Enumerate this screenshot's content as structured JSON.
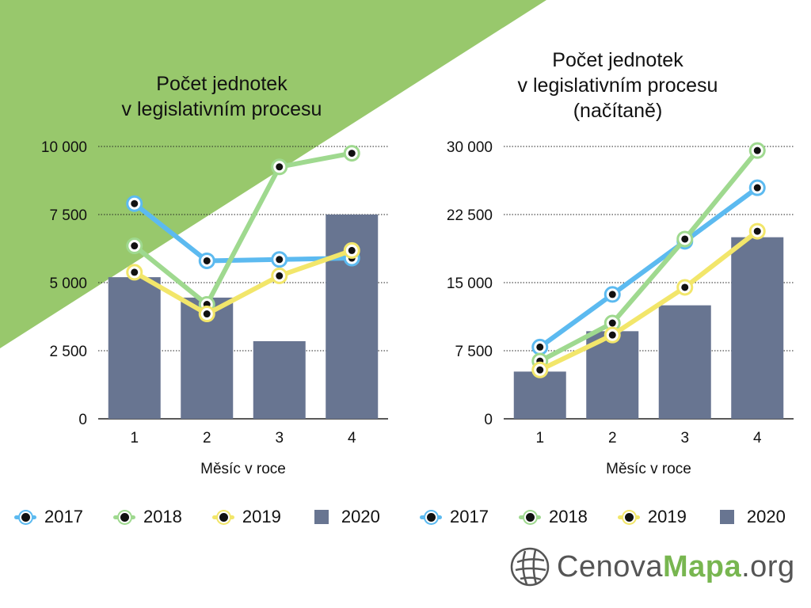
{
  "colors": {
    "background_accent": "#98c86c",
    "series_2017": "#5cbaf0",
    "series_2018": "#9fd98f",
    "series_2019": "#f2e66a",
    "series_2020": "#687591",
    "marker_fill": "#111111"
  },
  "legend": [
    {
      "label": "2017",
      "kind": "line",
      "color_key": "series_2017"
    },
    {
      "label": "2018",
      "kind": "line",
      "color_key": "series_2018"
    },
    {
      "label": "2019",
      "kind": "line",
      "color_key": "series_2019"
    },
    {
      "label": "2020",
      "kind": "bar",
      "color_key": "series_2020"
    }
  ],
  "logo": {
    "part1": "Cenova",
    "part2": "Mapa",
    "part3": ".org",
    "icon": "globe-grid-icon"
  },
  "chart_data": [
    {
      "type": "bar+line",
      "title_lines": [
        "Počet jednotek",
        "v legislativním procesu"
      ],
      "xlabel": "Měsíc v roce",
      "ylabel": "",
      "categories": [
        "1",
        "2",
        "3",
        "4"
      ],
      "ylim": [
        0,
        10000
      ],
      "yticks": [
        0,
        2500,
        5000,
        7500,
        10000
      ],
      "ytick_labels": [
        "0",
        "2 500",
        "5 000",
        "7 500",
        "10 000"
      ],
      "grid": true,
      "legend_position": "bottom",
      "bars": {
        "name": "2020",
        "values": [
          5200,
          4450,
          2850,
          7500
        ]
      },
      "series": [
        {
          "name": "2017",
          "values": [
            7900,
            5800,
            5850,
            5900
          ]
        },
        {
          "name": "2018",
          "values": [
            6350,
            4200,
            9250,
            9750
          ]
        },
        {
          "name": "2019",
          "values": [
            5380,
            3850,
            5250,
            6180
          ]
        }
      ]
    },
    {
      "type": "bar+line",
      "title_lines": [
        "Počet jednotek",
        "v legislativním procesu",
        "(načítaně)"
      ],
      "xlabel": "Měsíc v roce",
      "ylabel": "",
      "categories": [
        "1",
        "2",
        "3",
        "4"
      ],
      "ylim": [
        0,
        30000
      ],
      "yticks": [
        0,
        7500,
        15000,
        22500,
        30000
      ],
      "ytick_labels": [
        "0",
        "7 500",
        "15 000",
        "22 500",
        "30 000"
      ],
      "grid": true,
      "legend_position": "bottom",
      "bars": {
        "name": "2020",
        "values": [
          5200,
          9650,
          12500,
          20000
        ]
      },
      "series": [
        {
          "name": "2017",
          "values": [
            7900,
            13700,
            19550,
            25450
          ]
        },
        {
          "name": "2018",
          "values": [
            6350,
            10550,
            19800,
            29550
          ]
        },
        {
          "name": "2019",
          "values": [
            5380,
            9230,
            14480,
            20660
          ]
        }
      ]
    }
  ]
}
